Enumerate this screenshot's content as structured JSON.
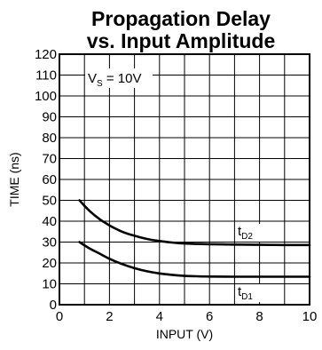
{
  "chart_data": {
    "type": "line",
    "title_line1": "Propagation Delay",
    "title_line2": "vs. Input Amplitude",
    "xlabel": "INPUT (V)",
    "ylabel": "TIME (ns)",
    "xlim": [
      0,
      10
    ],
    "ylim": [
      0,
      120
    ],
    "x_ticks": [
      0,
      2,
      4,
      6,
      8,
      10
    ],
    "y_ticks": [
      0,
      10,
      20,
      30,
      40,
      50,
      60,
      70,
      80,
      90,
      100,
      110,
      120
    ],
    "grid": true,
    "condition": {
      "main": "V",
      "sub": "S",
      "rest": " = 10V"
    },
    "series": [
      {
        "name": "tD2",
        "label_main": "t",
        "label_sub": "D2",
        "x": [
          0.8,
          1.2,
          1.6,
          2.0,
          2.5,
          3.0,
          3.5,
          4.0,
          4.5,
          5.0,
          6.0,
          7.0,
          8.0,
          9.0,
          10.0
        ],
        "y": [
          50,
          45,
          41,
          38,
          35,
          33,
          31.5,
          30.5,
          29.8,
          29.3,
          29,
          28.8,
          28.7,
          28.6,
          28.6
        ]
      },
      {
        "name": "tD1",
        "label_main": "t",
        "label_sub": "D1",
        "x": [
          0.8,
          1.2,
          1.6,
          2.0,
          2.5,
          3.0,
          3.5,
          4.0,
          4.5,
          5.0,
          5.5,
          6.0,
          7.0,
          8.0,
          9.0,
          10.0
        ],
        "y": [
          30,
          27,
          24.5,
          22,
          19.5,
          17.5,
          16,
          15,
          14.3,
          13.8,
          13.6,
          13.5,
          13.4,
          13.4,
          13.4,
          13.4
        ]
      }
    ],
    "colors": {
      "line": "#000000",
      "grid": "#000000",
      "background": "#ffffff"
    }
  }
}
